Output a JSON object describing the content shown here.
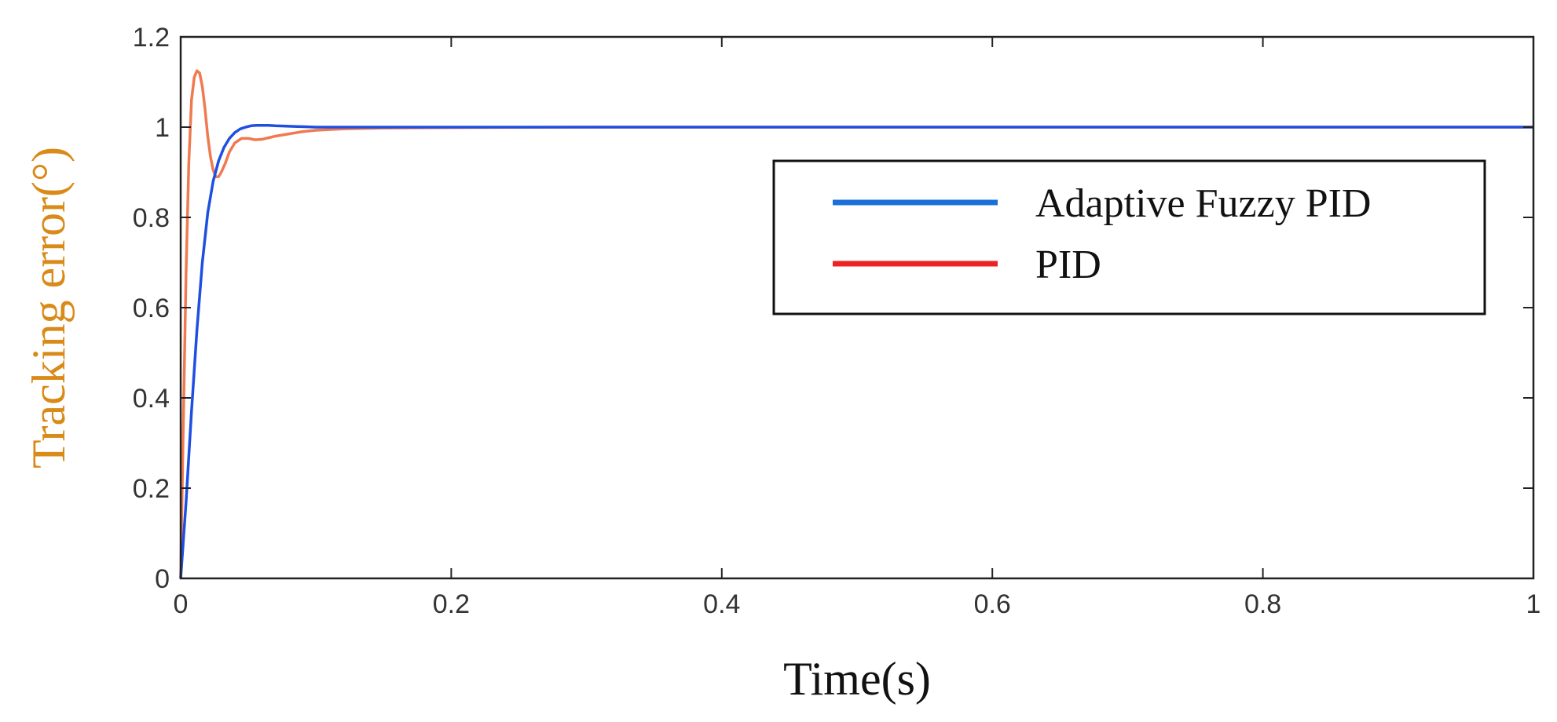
{
  "chart_data": {
    "type": "line",
    "title": "",
    "xlabel": "Time(s)",
    "ylabel": "Tracking error(°)",
    "xlim": [
      0,
      1
    ],
    "ylim": [
      0,
      1.2
    ],
    "xticks": [
      0,
      0.2,
      0.4,
      0.6,
      0.8,
      1
    ],
    "xtick_labels": [
      "0",
      "0.2",
      "0.4",
      "0.6",
      "0.8",
      "1"
    ],
    "yticks": [
      0,
      0.2,
      0.4,
      0.6,
      0.8,
      1,
      1.2
    ],
    "ytick_labels": [
      "0",
      "0.2",
      "0.4",
      "0.6",
      "0.8",
      "1",
      "1.2"
    ],
    "grid": false,
    "legend_position": "upper-right",
    "xlabel_color": "#111111",
    "ylabel_color": "#d98a18",
    "series": [
      {
        "name": "Adaptive Fuzzy PID",
        "color": "#1f4fe0",
        "legend_color": "#1a6fd8",
        "x": [
          0,
          0.004,
          0.008,
          0.012,
          0.016,
          0.02,
          0.024,
          0.028,
          0.032,
          0.036,
          0.04,
          0.044,
          0.048,
          0.052,
          0.056,
          0.06,
          0.065,
          0.07,
          0.08,
          0.09,
          0.1,
          0.15,
          0.2,
          0.3,
          0.4,
          0.5,
          0.6,
          0.7,
          0.8,
          0.9,
          1.0
        ],
        "y": [
          0,
          0.17,
          0.37,
          0.55,
          0.7,
          0.81,
          0.88,
          0.925,
          0.955,
          0.975,
          0.988,
          0.996,
          1.0,
          1.003,
          1.004,
          1.004,
          1.004,
          1.003,
          1.002,
          1.001,
          1.0,
          1.0,
          1.0,
          1.0,
          1.0,
          1.0,
          1.0,
          1.0,
          1.0,
          1.0,
          1.0
        ]
      },
      {
        "name": "PID",
        "color": "#f07a50",
        "legend_color": "#ee2222",
        "x": [
          0,
          0.002,
          0.004,
          0.006,
          0.008,
          0.01,
          0.012,
          0.014,
          0.016,
          0.018,
          0.02,
          0.022,
          0.024,
          0.026,
          0.028,
          0.03,
          0.033,
          0.036,
          0.04,
          0.045,
          0.05,
          0.055,
          0.06,
          0.07,
          0.08,
          0.09,
          0.1,
          0.12,
          0.15,
          0.2,
          0.3,
          0.5,
          0.7,
          1.0
        ],
        "y": [
          0,
          0.35,
          0.68,
          0.92,
          1.06,
          1.11,
          1.125,
          1.12,
          1.09,
          1.04,
          0.98,
          0.935,
          0.905,
          0.89,
          0.89,
          0.9,
          0.92,
          0.945,
          0.965,
          0.975,
          0.975,
          0.972,
          0.973,
          0.98,
          0.985,
          0.99,
          0.993,
          0.996,
          0.998,
          0.999,
          1.0,
          1.0,
          1.0,
          1.0
        ]
      }
    ]
  }
}
